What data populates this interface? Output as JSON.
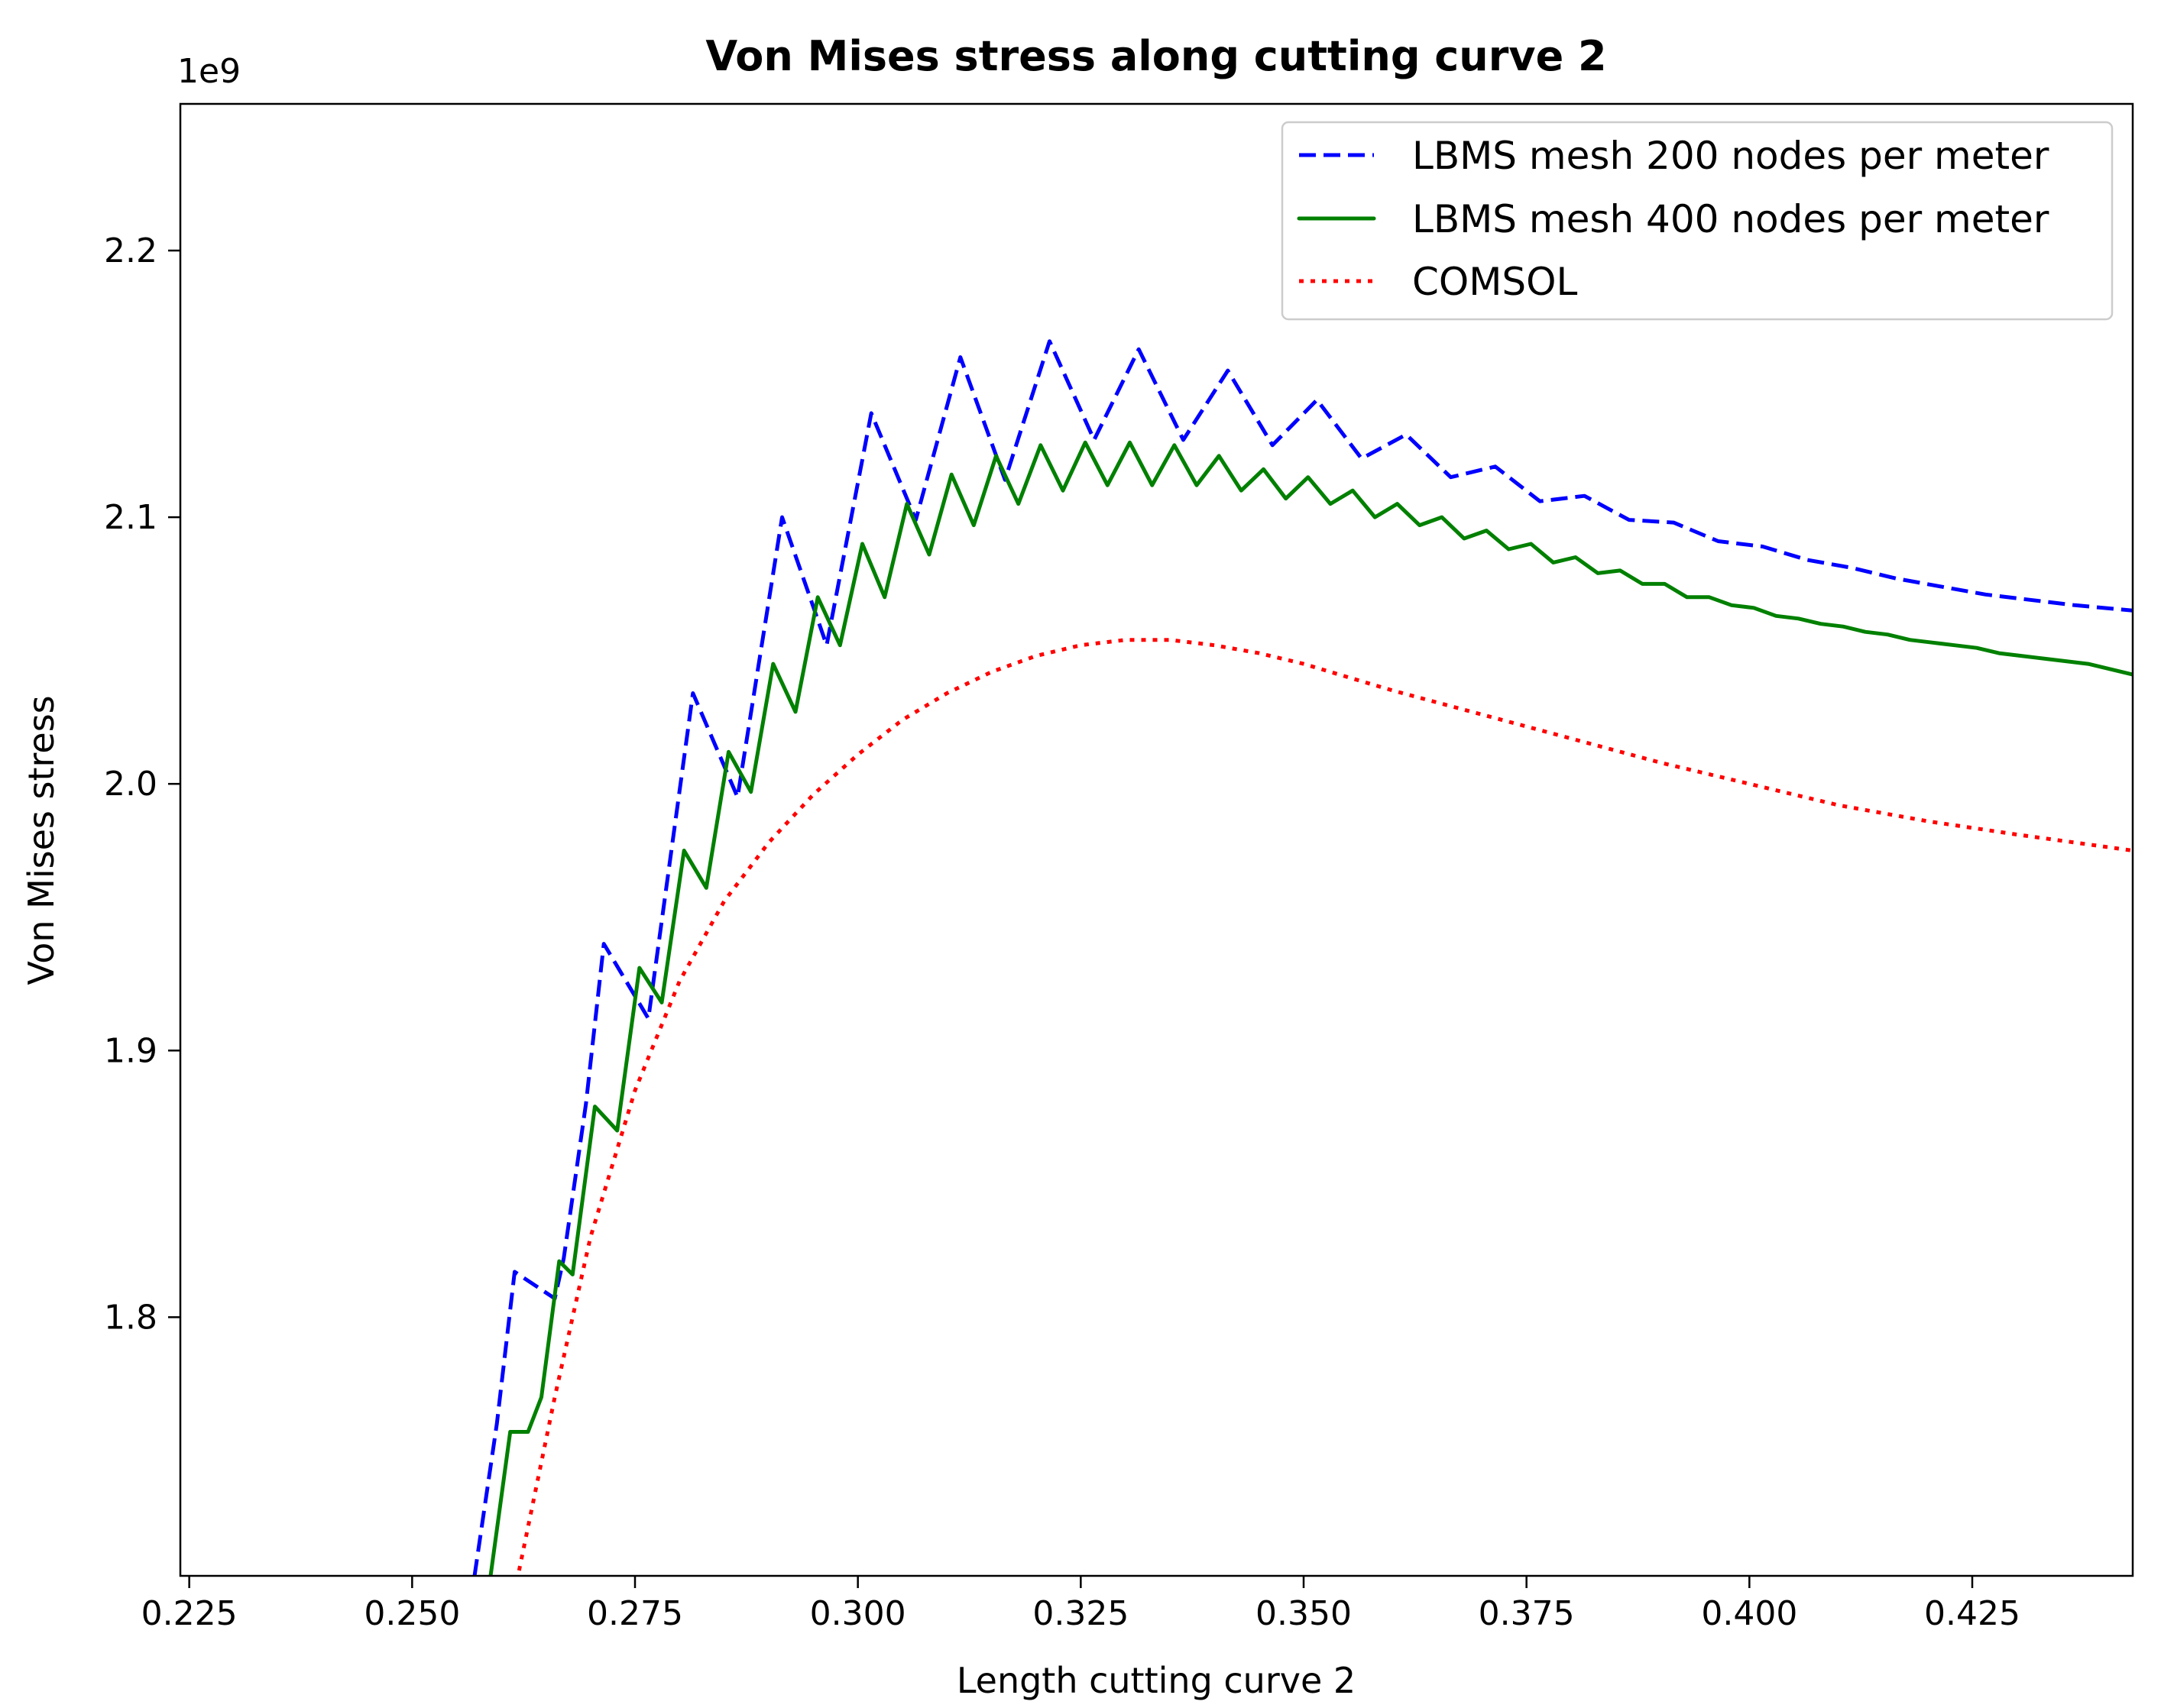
{
  "chart_data": {
    "type": "line",
    "title": "Von Mises stress along cutting curve 2",
    "xlabel": "Length cutting curve 2",
    "ylabel": "Von Mises stress",
    "y_offset_label": "1e9",
    "xlim": [
      0.224,
      0.443
    ],
    "ylim": [
      1.703,
      2.255
    ],
    "xticks": [
      0.225,
      0.25,
      0.275,
      0.3,
      0.325,
      0.35,
      0.375,
      0.4,
      0.425
    ],
    "xtick_labels": [
      "0.225",
      "0.250",
      "0.275",
      "0.300",
      "0.325",
      "0.350",
      "0.375",
      "0.400",
      "0.425"
    ],
    "yticks": [
      1.8,
      1.9,
      2.0,
      2.1,
      2.2
    ],
    "ytick_labels": [
      "1.8",
      "1.9",
      "2.0",
      "2.1",
      "2.2"
    ],
    "grid": false,
    "legend_position": "top-right",
    "series": [
      {
        "name": "LBMS mesh 200 nodes per meter",
        "color": "#0000ff",
        "style": "dashed",
        "x": [
          0.257,
          0.2595,
          0.2615,
          0.266,
          0.267,
          0.2695,
          0.2715,
          0.2765,
          0.2815,
          0.2865,
          0.2915,
          0.2965,
          0.3015,
          0.3065,
          0.3115,
          0.3165,
          0.3215,
          0.3265,
          0.3315,
          0.3365,
          0.3415,
          0.3465,
          0.3515,
          0.3565,
          0.3615,
          0.3665,
          0.3715,
          0.3765,
          0.3815,
          0.3865,
          0.3915,
          0.3965,
          0.4015,
          0.4065,
          0.4115,
          0.4165,
          0.4215,
          0.4265,
          0.4315,
          0.4365,
          0.443
        ],
        "y": [
          1.703,
          1.76,
          1.817,
          1.807,
          1.822,
          1.88,
          1.94,
          1.912,
          2.034,
          1.995,
          2.1,
          2.052,
          2.139,
          2.099,
          2.16,
          2.114,
          2.166,
          2.129,
          2.163,
          2.129,
          2.155,
          2.127,
          2.144,
          2.122,
          2.131,
          2.115,
          2.119,
          2.106,
          2.108,
          2.099,
          2.098,
          2.091,
          2.089,
          2.084,
          2.081,
          2.077,
          2.074,
          2.071,
          2.069,
          2.067,
          2.065
        ]
      },
      {
        "name": "LBMS mesh 400 nodes per meter",
        "color": "#008000",
        "style": "solid",
        "x": [
          0.2588,
          0.261,
          0.263,
          0.2645,
          0.2665,
          0.268,
          0.2705,
          0.273,
          0.2755,
          0.278,
          0.2805,
          0.283,
          0.2855,
          0.288,
          0.2905,
          0.293,
          0.2955,
          0.298,
          0.3005,
          0.303,
          0.3055,
          0.308,
          0.3105,
          0.313,
          0.3155,
          0.318,
          0.3205,
          0.323,
          0.3255,
          0.328,
          0.3305,
          0.333,
          0.3355,
          0.338,
          0.3405,
          0.343,
          0.3455,
          0.348,
          0.3505,
          0.353,
          0.3555,
          0.358,
          0.3605,
          0.363,
          0.3655,
          0.368,
          0.3705,
          0.373,
          0.3755,
          0.378,
          0.3805,
          0.383,
          0.3855,
          0.388,
          0.3905,
          0.393,
          0.3955,
          0.398,
          0.4005,
          0.403,
          0.4055,
          0.408,
          0.4105,
          0.413,
          0.4155,
          0.418,
          0.4205,
          0.423,
          0.4255,
          0.428,
          0.4305,
          0.433,
          0.4355,
          0.438,
          0.443
        ],
        "y": [
          1.703,
          1.757,
          1.757,
          1.77,
          1.821,
          1.816,
          1.879,
          1.87,
          1.931,
          1.918,
          1.975,
          1.961,
          2.012,
          1.997,
          2.045,
          2.027,
          2.07,
          2.052,
          2.09,
          2.07,
          2.105,
          2.086,
          2.116,
          2.097,
          2.123,
          2.105,
          2.127,
          2.11,
          2.128,
          2.112,
          2.128,
          2.112,
          2.127,
          2.112,
          2.123,
          2.11,
          2.118,
          2.107,
          2.115,
          2.105,
          2.11,
          2.1,
          2.105,
          2.097,
          2.1,
          2.092,
          2.095,
          2.088,
          2.09,
          2.083,
          2.085,
          2.079,
          2.08,
          2.075,
          2.075,
          2.07,
          2.07,
          2.067,
          2.066,
          2.063,
          2.062,
          2.06,
          2.059,
          2.057,
          2.056,
          2.054,
          2.053,
          2.052,
          2.051,
          2.049,
          2.048,
          2.047,
          2.046,
          2.045,
          2.041
        ]
      },
      {
        "name": "COMSOL",
        "color": "#ff0000",
        "style": "dotted",
        "x": [
          0.262,
          0.266,
          0.27,
          0.275,
          0.28,
          0.285,
          0.29,
          0.295,
          0.3,
          0.305,
          0.31,
          0.315,
          0.32,
          0.325,
          0.33,
          0.335,
          0.34,
          0.345,
          0.35,
          0.355,
          0.36,
          0.37,
          0.38,
          0.39,
          0.4,
          0.41,
          0.42,
          0.43,
          0.443
        ],
        "y": [
          1.705,
          1.77,
          1.83,
          1.885,
          1.926,
          1.956,
          1.978,
          1.996,
          2.011,
          2.024,
          2.034,
          2.042,
          2.048,
          2.052,
          2.054,
          2.054,
          2.052,
          2.049,
          2.045,
          2.04,
          2.035,
          2.026,
          2.017,
          2.008,
          2.0,
          1.992,
          1.986,
          1.981,
          1.975
        ]
      }
    ]
  }
}
